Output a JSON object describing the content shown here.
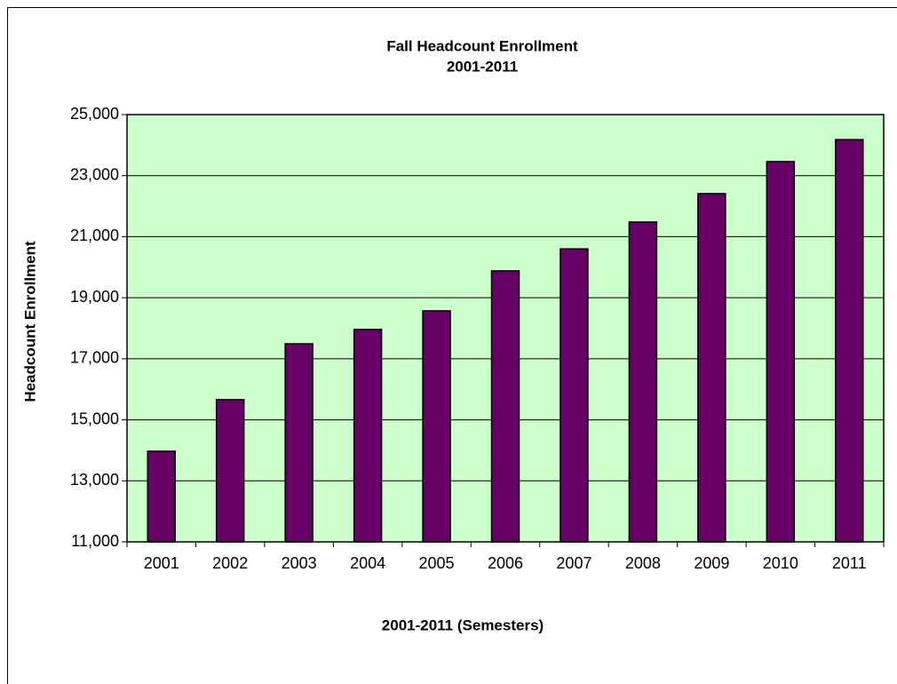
{
  "chart_data": {
    "type": "bar",
    "title": "Fall Headcount Enrollment",
    "subtitle": "2001-2011",
    "x_label": "2001-2011 (Semesters)",
    "y_label": "Headcount Enrollment",
    "categories": [
      "2001",
      "2002",
      "2003",
      "2004",
      "2005",
      "2006",
      "2007",
      "2008",
      "2009",
      "2010",
      "2011"
    ],
    "values": [
      13970,
      15660,
      17490,
      17960,
      18570,
      19880,
      20600,
      21480,
      22410,
      23460,
      24180
    ],
    "color": "#660066",
    "plot_background": "#ccffcc",
    "ylim": [
      11000,
      25000
    ],
    "yticks": [
      {
        "value": 11000,
        "label": "11,000"
      },
      {
        "value": 13000,
        "label": "13,000"
      },
      {
        "value": 15000,
        "label": "15,000"
      },
      {
        "value": 17000,
        "label": "17,000"
      },
      {
        "value": 19000,
        "label": "19,000"
      },
      {
        "value": 21000,
        "label": "21,000"
      },
      {
        "value": 23000,
        "label": "23,000"
      },
      {
        "value": 25000,
        "label": "25,000"
      }
    ],
    "grid": true
  }
}
